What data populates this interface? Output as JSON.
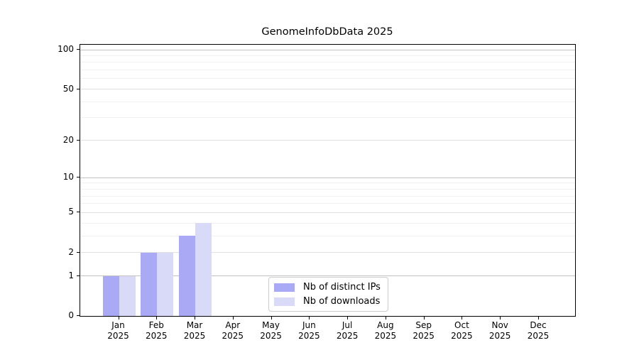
{
  "chart_data": {
    "type": "bar",
    "title": "GenomeInfoDbData 2025",
    "categories": [
      "Jan",
      "Feb",
      "Mar",
      "Apr",
      "May",
      "Jun",
      "Jul",
      "Aug",
      "Sep",
      "Oct",
      "Nov",
      "Dec"
    ],
    "category_year": "2025",
    "series": [
      {
        "name": "Nb of distinct IPs",
        "color": "#a9a9f5",
        "values": [
          1,
          2,
          3,
          0,
          0,
          0,
          0,
          0,
          0,
          0,
          0,
          0
        ]
      },
      {
        "name": "Nb of downloads",
        "color": "#d9d9f8",
        "values": [
          1,
          2,
          4,
          0,
          0,
          0,
          0,
          0,
          0,
          0,
          0,
          0
        ]
      }
    ],
    "xlabel": "",
    "ylabel": "",
    "yscale": "log1p",
    "ylim": [
      0,
      110
    ],
    "yticks": [
      0,
      1,
      2,
      5,
      10,
      20,
      50,
      100
    ],
    "grid": true,
    "gridline_values": {
      "major": [
        1,
        10,
        100
      ],
      "mid": [
        2,
        5,
        20,
        50
      ],
      "minor": [
        3,
        4,
        6,
        7,
        8,
        9,
        30,
        40,
        60,
        70,
        80,
        90
      ]
    },
    "legend_position": "bottom-center"
  },
  "colors": {
    "grid_major": "#c2c2c2",
    "grid_mid": "#e0e0e0",
    "grid_minor": "#f1f1f1",
    "frame": "#000000",
    "text": "#000000",
    "legend_border": "#cccccc"
  }
}
